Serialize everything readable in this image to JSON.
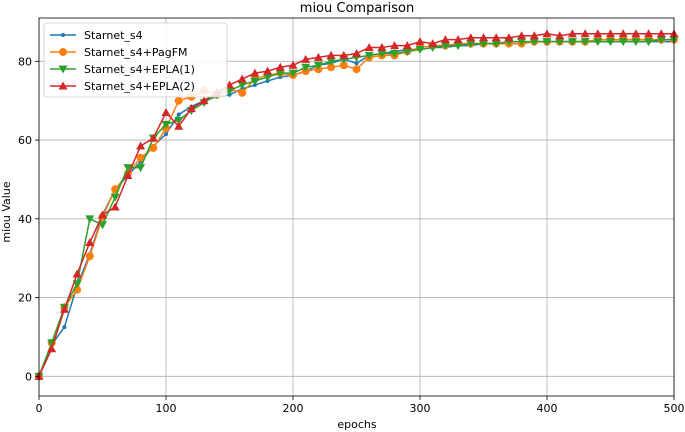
{
  "chart_data": {
    "type": "line",
    "title": "miou Comparison",
    "xlabel": "epochs",
    "ylabel": "miou Value",
    "xlim": [
      0,
      500
    ],
    "ylim": [
      -5,
      91
    ],
    "xticks": [
      0,
      100,
      200,
      300,
      400,
      500
    ],
    "yticks": [
      0,
      20,
      40,
      60,
      80
    ],
    "grid": true,
    "legend_position": "upper-left",
    "x": [
      0,
      10,
      20,
      30,
      40,
      50,
      60,
      70,
      80,
      90,
      100,
      110,
      120,
      130,
      140,
      150,
      160,
      170,
      180,
      190,
      200,
      210,
      220,
      230,
      240,
      250,
      260,
      270,
      280,
      290,
      300,
      310,
      320,
      330,
      340,
      350,
      360,
      370,
      380,
      390,
      400,
      410,
      420,
      430,
      440,
      450,
      460,
      470,
      480,
      490,
      500
    ],
    "series": [
      {
        "name": "Starnet_s4",
        "color": "#1f77b4",
        "marker": "point",
        "values": [
          0,
          8,
          12.5,
          23,
          31,
          41,
          47.5,
          51,
          54.5,
          58.5,
          61.5,
          66.5,
          68.5,
          70,
          71,
          71.5,
          73,
          74,
          75,
          76,
          76.5,
          77.5,
          79,
          79.5,
          80.5,
          79.5,
          81.5,
          82,
          82.5,
          83,
          83,
          83.5,
          83.5,
          84,
          84,
          84.5,
          84.5,
          84.5,
          84.5,
          85,
          85,
          85,
          85,
          85,
          85,
          85,
          85,
          85,
          85,
          85,
          85
        ]
      },
      {
        "name": "Starnet_s4+PagFM",
        "color": "#ff7f0e",
        "marker": "circle",
        "values": [
          0,
          8.5,
          17.5,
          22,
          30.5,
          40.5,
          47.5,
          51.5,
          55.5,
          58,
          63,
          70,
          71,
          72.5,
          71.5,
          73,
          72,
          75.5,
          76.5,
          77,
          76.5,
          77.5,
          78,
          78.5,
          79,
          78,
          81,
          81.5,
          81.5,
          82.5,
          83.5,
          84,
          84,
          84.5,
          84.5,
          84.5,
          84.5,
          84.5,
          84.5,
          85,
          85,
          85,
          85,
          85,
          85.5,
          85.5,
          85.5,
          85.5,
          85.5,
          85.5,
          85.5
        ]
      },
      {
        "name": "Starnet_s4+EPLA(1)",
        "color": "#2ca02c",
        "marker": "triangle-down",
        "values": [
          0,
          8.5,
          17.5,
          23.5,
          40,
          38.5,
          45.5,
          53,
          53,
          60.5,
          64,
          65,
          67.5,
          69.5,
          71.5,
          72.5,
          74,
          75,
          76,
          77,
          77,
          78.5,
          79,
          80,
          80.5,
          81,
          81.5,
          82,
          82,
          82.5,
          83,
          83.5,
          84,
          84,
          84.5,
          84.5,
          84.5,
          85,
          85,
          85,
          85,
          85,
          85,
          85,
          85,
          85,
          85,
          85,
          85,
          85.5,
          85.5
        ]
      },
      {
        "name": "Starnet_s4+EPLA(2)",
        "color": "#d62728",
        "marker": "triangle-up",
        "values": [
          0,
          7,
          17,
          26,
          34,
          41,
          43,
          51,
          58.5,
          60.5,
          67,
          63.5,
          68,
          70,
          72,
          74,
          75.5,
          77,
          77.5,
          78.5,
          79,
          80.5,
          81,
          81.5,
          81.5,
          82,
          83.5,
          83.5,
          84,
          84,
          85,
          84.5,
          85.5,
          85.5,
          86,
          86,
          86,
          86,
          86.5,
          86.5,
          87,
          86.5,
          87,
          87,
          87,
          87,
          87,
          87,
          87,
          87,
          87
        ]
      }
    ]
  }
}
